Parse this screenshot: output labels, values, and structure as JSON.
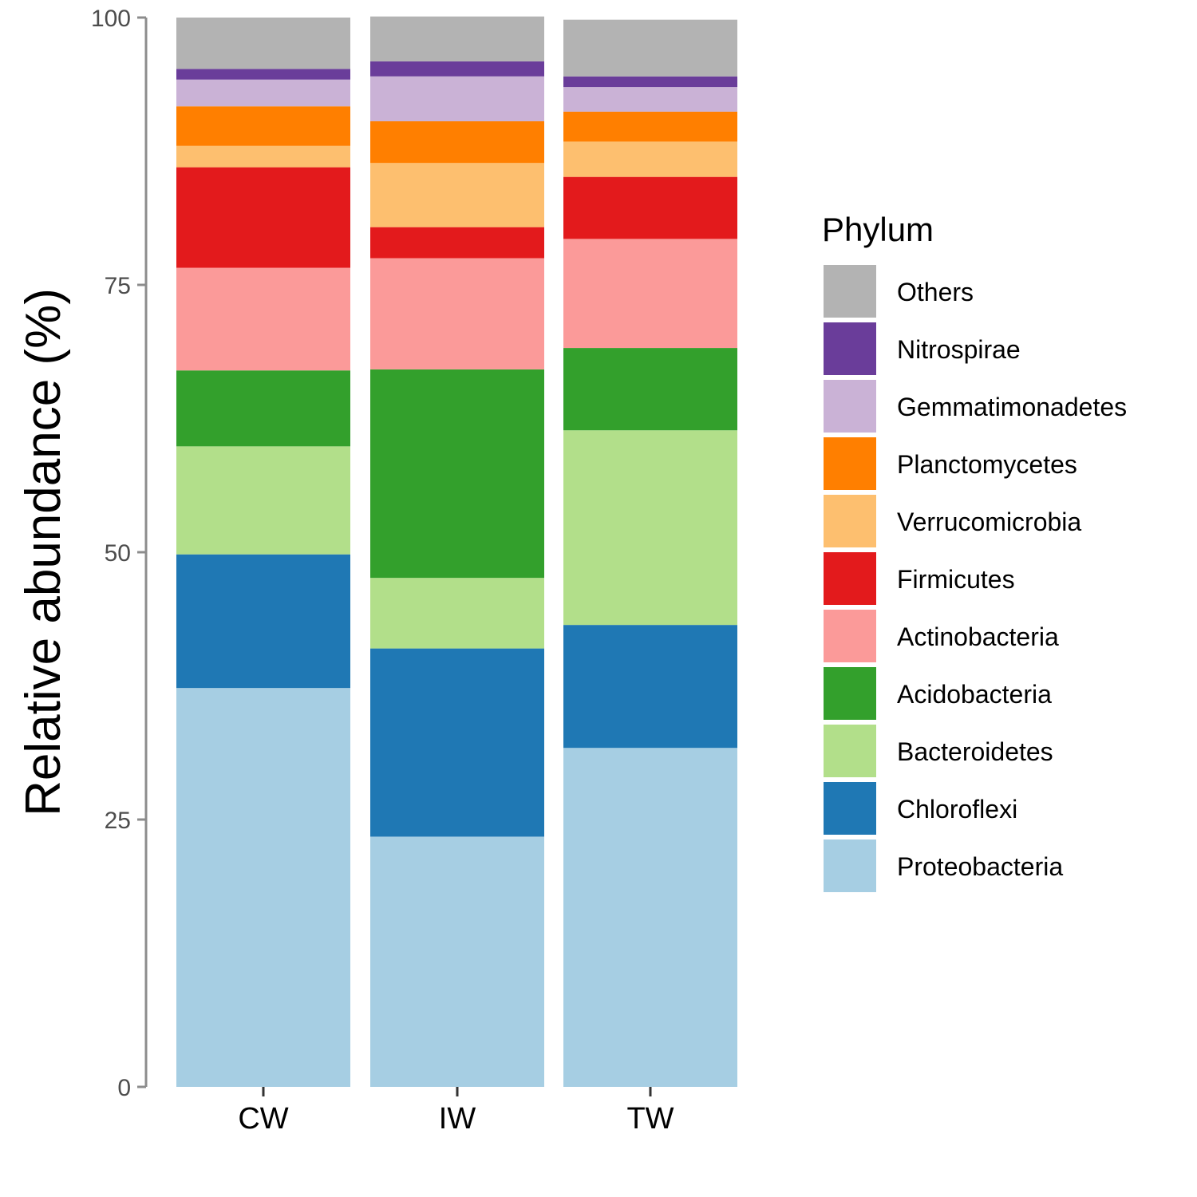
{
  "chart_data": {
    "type": "bar",
    "stacked": true,
    "categories": [
      "CW",
      "IW",
      "TW"
    ],
    "ylabel": "Relative abundance (%)",
    "ylim": [
      0,
      100
    ],
    "yticks": [
      "0",
      "25",
      "50",
      "75",
      "100"
    ],
    "legend_title": "Phylum",
    "legend_position": "right",
    "series": [
      {
        "name": "Proteobacteria",
        "color": "#A6CEE3",
        "values": [
          37.3,
          23.4,
          31.7
        ]
      },
      {
        "name": "Chloroflexi",
        "color": "#1F78B4",
        "values": [
          12.5,
          17.6,
          11.5
        ]
      },
      {
        "name": "Bacteroidetes",
        "color": "#B2DF8A",
        "values": [
          10.1,
          6.6,
          18.2
        ]
      },
      {
        "name": "Acidobacteria",
        "color": "#33A02C",
        "values": [
          7.1,
          19.5,
          7.7
        ]
      },
      {
        "name": "Actinobacteria",
        "color": "#FB9A99",
        "values": [
          9.6,
          10.4,
          10.2
        ]
      },
      {
        "name": "Firmicutes",
        "color": "#E31A1C",
        "values": [
          9.4,
          2.9,
          5.8
        ]
      },
      {
        "name": "Verrucomicrobia",
        "color": "#FDBF6F",
        "values": [
          2.0,
          6.0,
          3.3
        ]
      },
      {
        "name": "Planctomycetes",
        "color": "#FF7F00",
        "values": [
          3.7,
          3.9,
          2.8
        ]
      },
      {
        "name": "Gemmatimonadetes",
        "color": "#CAB2D6",
        "values": [
          2.5,
          4.2,
          2.3
        ]
      },
      {
        "name": "Nitrospirae",
        "color": "#6A3D9A",
        "values": [
          1.0,
          1.4,
          1.0
        ]
      },
      {
        "name": "Others",
        "color": "#B3B3B3",
        "values": [
          4.8,
          4.2,
          5.3
        ]
      }
    ]
  }
}
